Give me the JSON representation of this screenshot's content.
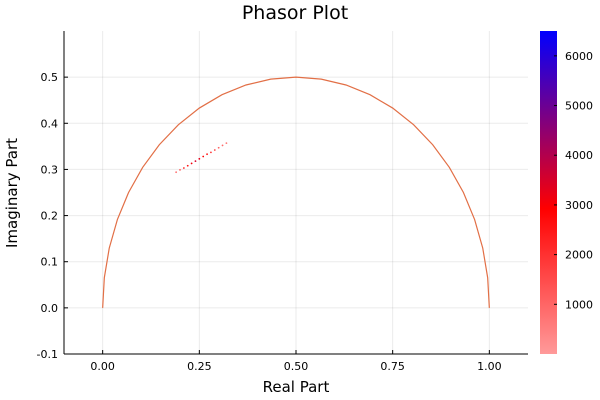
{
  "chart_data": {
    "type": "scatter",
    "title": "Phasor Plot",
    "xlabel": "Real Part",
    "ylabel": "Imaginary Part",
    "xlim": [
      -0.1,
      1.1
    ],
    "ylim": [
      -0.1,
      0.6
    ],
    "grid": true,
    "x_ticks": [
      0.0,
      0.25,
      0.5,
      0.75,
      1.0
    ],
    "x_tick_labels": [
      "0.00",
      "0.25",
      "0.50",
      "0.75",
      "1.00"
    ],
    "y_ticks": [
      -0.1,
      0.0,
      0.1,
      0.2,
      0.3,
      0.4,
      0.5
    ],
    "y_tick_labels": [
      "-0.1",
      "0.0",
      "0.1",
      "0.2",
      "0.3",
      "0.4",
      "0.5"
    ],
    "series": [
      {
        "kind": "line",
        "shape": "semicircle",
        "center": [
          0.5,
          0.0
        ],
        "radius": 0.5,
        "color": "#e26f46"
      },
      {
        "kind": "scatter",
        "color_scale": "counts",
        "x": [
          0.19,
          0.2,
          0.21,
          0.22,
          0.23,
          0.24,
          0.25,
          0.26,
          0.27,
          0.28,
          0.29,
          0.3,
          0.31,
          0.32
        ],
        "y": [
          0.294,
          0.299,
          0.303,
          0.308,
          0.313,
          0.318,
          0.323,
          0.328,
          0.333,
          0.337,
          0.342,
          0.347,
          0.352,
          0.357
        ],
        "values": [
          700,
          1200,
          2000,
          2600,
          3100,
          3500,
          3300,
          2900,
          2400,
          1900,
          1500,
          1100,
          900,
          750
        ]
      }
    ],
    "colorbar": {
      "min": 0,
      "max": 6500,
      "ticks": [
        1000,
        2000,
        3000,
        4000,
        5000,
        6000
      ],
      "tick_labels": [
        "1000",
        "2000",
        "3000",
        "4000",
        "5000",
        "6000"
      ],
      "colors": [
        "#ff9a9a",
        "#ff0000",
        "#0000ff"
      ]
    }
  }
}
